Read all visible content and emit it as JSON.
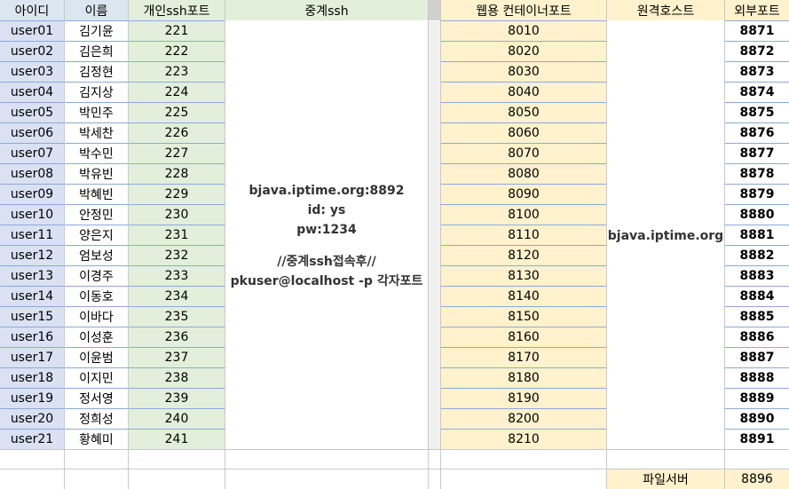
{
  "headers": {
    "id": "아이디",
    "name": "이름",
    "port": "개인ssh포트",
    "relay": "중계ssh",
    "web": "웹용 컨테이너포트",
    "remote": "원격호스트",
    "external": "외부포트"
  },
  "rows": [
    {
      "id": "user01",
      "name": "김기윤",
      "port": "221",
      "web": "8010",
      "ext": "8871"
    },
    {
      "id": "user02",
      "name": "김은희",
      "port": "222",
      "web": "8020",
      "ext": "8872"
    },
    {
      "id": "user03",
      "name": "김정현",
      "port": "223",
      "web": "8030",
      "ext": "8873"
    },
    {
      "id": "user04",
      "name": "김지상",
      "port": "224",
      "web": "8040",
      "ext": "8874"
    },
    {
      "id": "user05",
      "name": "박민주",
      "port": "225",
      "web": "8050",
      "ext": "8875"
    },
    {
      "id": "user06",
      "name": "박세찬",
      "port": "226",
      "web": "8060",
      "ext": "8876"
    },
    {
      "id": "user07",
      "name": "박수민",
      "port": "227",
      "web": "8070",
      "ext": "8877"
    },
    {
      "id": "user08",
      "name": "박유빈",
      "port": "228",
      "web": "8080",
      "ext": "8878"
    },
    {
      "id": "user09",
      "name": "박혜빈",
      "port": "229",
      "web": "8090",
      "ext": "8879"
    },
    {
      "id": "user10",
      "name": "안정민",
      "port": "230",
      "web": "8100",
      "ext": "8880"
    },
    {
      "id": "user11",
      "name": "양은지",
      "port": "231",
      "web": "8110",
      "ext": "8881"
    },
    {
      "id": "user12",
      "name": "엄보성",
      "port": "232",
      "web": "8120",
      "ext": "8882"
    },
    {
      "id": "user13",
      "name": "이경주",
      "port": "233",
      "web": "8130",
      "ext": "8883"
    },
    {
      "id": "user14",
      "name": "이동호",
      "port": "234",
      "web": "8140",
      "ext": "8884"
    },
    {
      "id": "user15",
      "name": "이바다",
      "port": "235",
      "web": "8150",
      "ext": "8885"
    },
    {
      "id": "user16",
      "name": "이성훈",
      "port": "236",
      "web": "8160",
      "ext": "8886"
    },
    {
      "id": "user17",
      "name": "이윤범",
      "port": "237",
      "web": "8170",
      "ext": "8887"
    },
    {
      "id": "user18",
      "name": "이지민",
      "port": "238",
      "web": "8180",
      "ext": "8888"
    },
    {
      "id": "user19",
      "name": "정서영",
      "port": "239",
      "web": "8190",
      "ext": "8889"
    },
    {
      "id": "user20",
      "name": "정희성",
      "port": "240",
      "web": "8200",
      "ext": "8890"
    },
    {
      "id": "user21",
      "name": "황혜미",
      "port": "241",
      "web": "8210",
      "ext": "8891"
    }
  ],
  "relay_box": {
    "line1": "bjava.iptime.org:8892",
    "line2": "id: ys",
    "line3": "pw:1234",
    "line4": "//중계ssh접속후//",
    "line5": "pkuser@localhost -p 각자포트"
  },
  "remote_host": "bjava.iptime.org",
  "file_server": {
    "label": "파일서버",
    "port": "8896"
  }
}
